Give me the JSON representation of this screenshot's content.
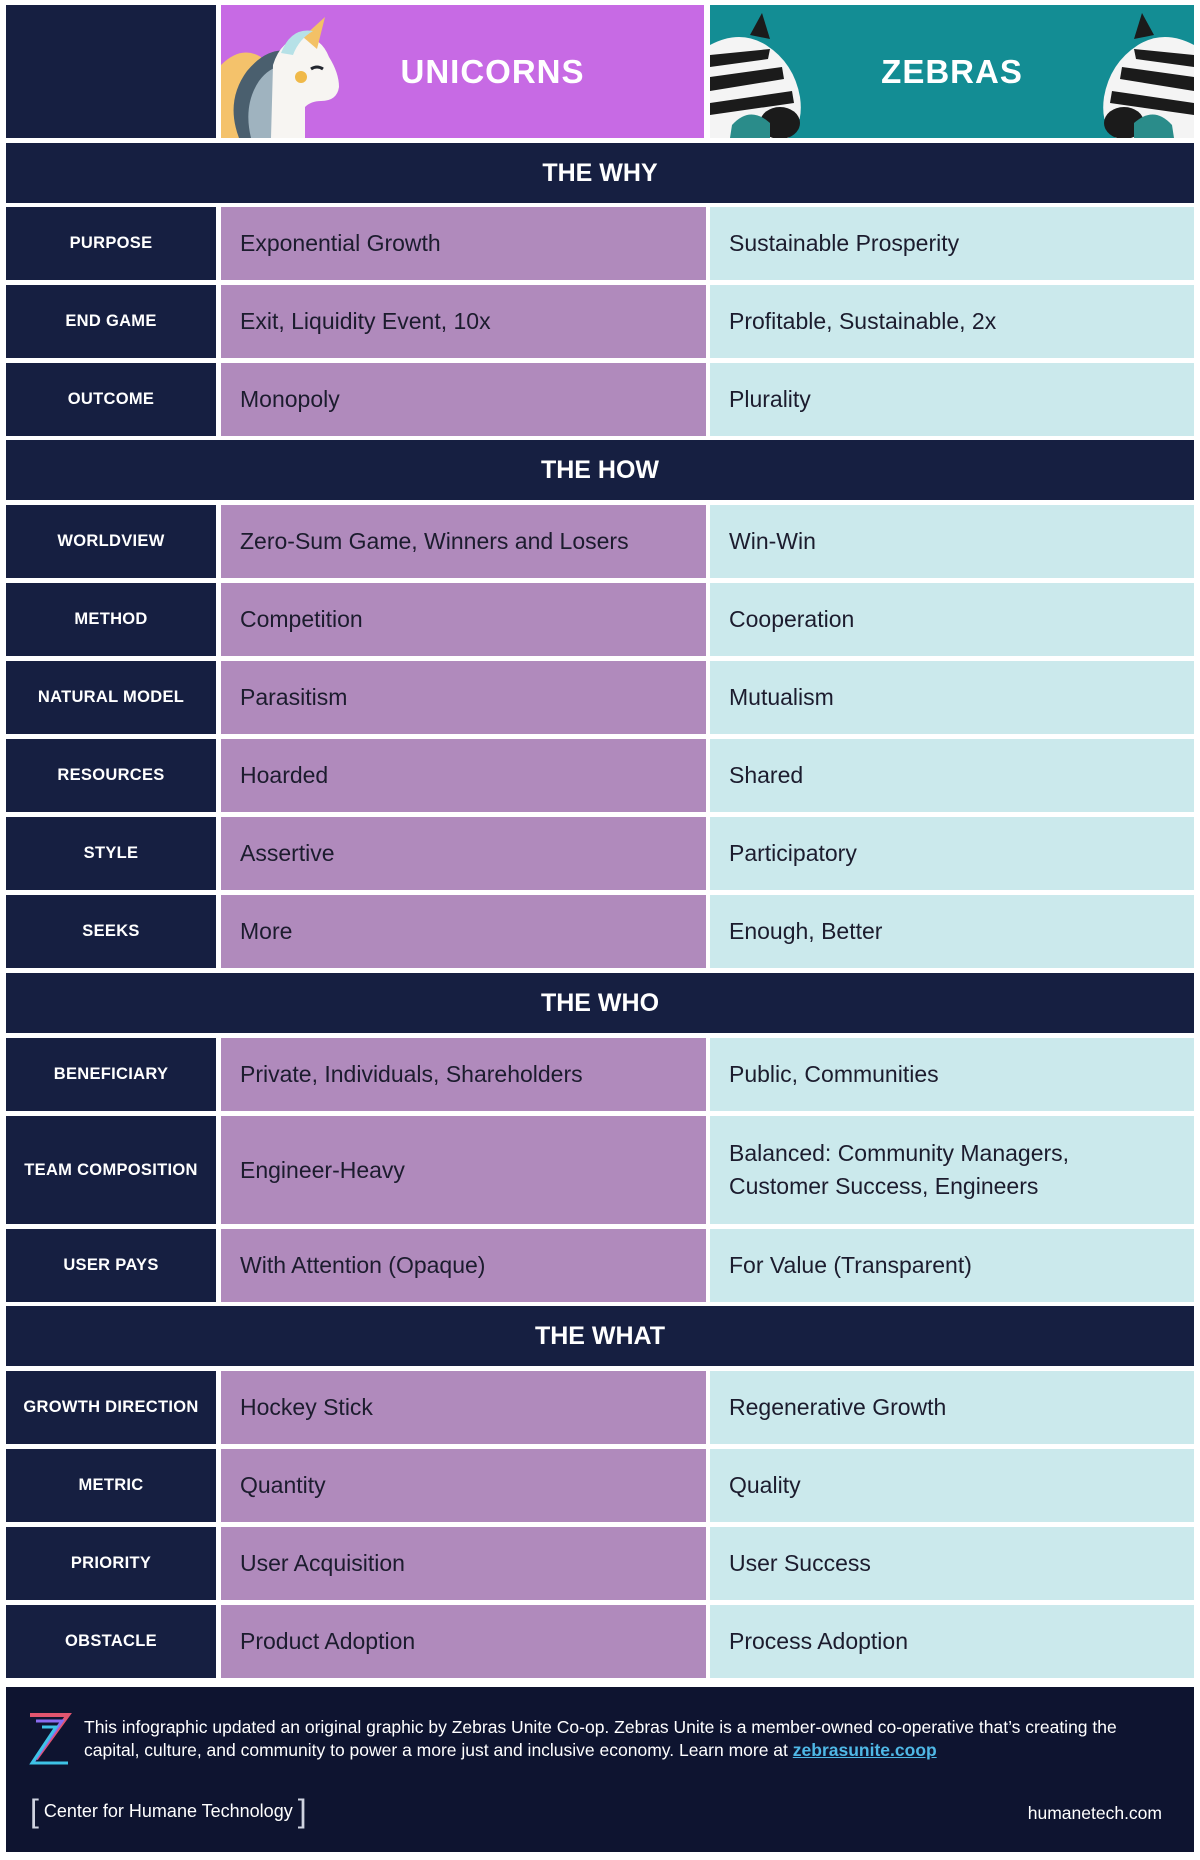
{
  "header": {
    "unicorns_title": "UNICORNS",
    "zebras_title": "ZEBRAS",
    "unicorn_icon": "unicorn-head-icon",
    "zebra_icon": "zebra-head-icon"
  },
  "colors": {
    "navy": "#161f41",
    "unicorn_header": "#c76ae4",
    "unicorn_cell": "#b08abc",
    "zebra_header": "#138d94",
    "zebra_cell": "#cbe9ec",
    "link": "#4fb8e6"
  },
  "sections": [
    {
      "title": "THE WHY",
      "rows": [
        {
          "label": "PURPOSE",
          "unicorns": "Exponential Growth",
          "zebras": "Sustainable Prosperity"
        },
        {
          "label": "END GAME",
          "unicorns": "Exit, Liquidity Event, 10x",
          "zebras": "Profitable, Sustainable, 2x"
        },
        {
          "label": "OUTCOME",
          "unicorns": "Monopoly",
          "zebras": "Plurality"
        }
      ]
    },
    {
      "title": "THE HOW",
      "rows": [
        {
          "label": "WORLDVIEW",
          "unicorns": "Zero-Sum Game, Winners and Losers",
          "zebras": "Win-Win"
        },
        {
          "label": "METHOD",
          "unicorns": "Competition",
          "zebras": "Cooperation"
        },
        {
          "label": "NATURAL MODEL",
          "unicorns": "Parasitism",
          "zebras": "Mutualism"
        },
        {
          "label": "RESOURCES",
          "unicorns": "Hoarded",
          "zebras": "Shared"
        },
        {
          "label": "STYLE",
          "unicorns": "Assertive",
          "zebras": "Participatory"
        },
        {
          "label": "SEEKS",
          "unicorns": "More",
          "zebras": "Enough, Better"
        }
      ]
    },
    {
      "title": "THE WHO",
      "rows": [
        {
          "label": "BENEFICIARY",
          "unicorns": "Private, Individuals, Shareholders",
          "zebras": "Public, Communities"
        },
        {
          "label": "TEAM COMPOSITION",
          "unicorns": "Engineer-Heavy",
          "zebras": "Balanced: Community Managers, Customer Success, Engineers"
        },
        {
          "label": "USER PAYS",
          "unicorns": "With Attention (Opaque)",
          "zebras": "For Value (Transparent)"
        }
      ]
    },
    {
      "title": "THE WHAT",
      "rows": [
        {
          "label": "GROWTH DIRECTION",
          "unicorns": "Hockey Stick",
          "zebras": "Regenerative Growth"
        },
        {
          "label": "METRIC",
          "unicorns": "Quantity",
          "zebras": "Quality"
        },
        {
          "label": "PRIORITY",
          "unicorns": "User Acquisition",
          "zebras": "User Success"
        },
        {
          "label": "OBSTACLE",
          "unicorns": "Product Adoption",
          "zebras": "Process Adoption"
        }
      ]
    }
  ],
  "footer": {
    "text": "This infographic updated an original graphic by Zebras Unite Co-op. Zebras Unite is a member-owned co-operative that’s creating the capital, culture, and community to power a more just and inclusive economy. Learn more at",
    "link": "zebrasunite.coop",
    "logo_icon": "zebras-unite-logo-icon",
    "brand": "Center for Humane Technology",
    "site": "humanetech.com"
  }
}
